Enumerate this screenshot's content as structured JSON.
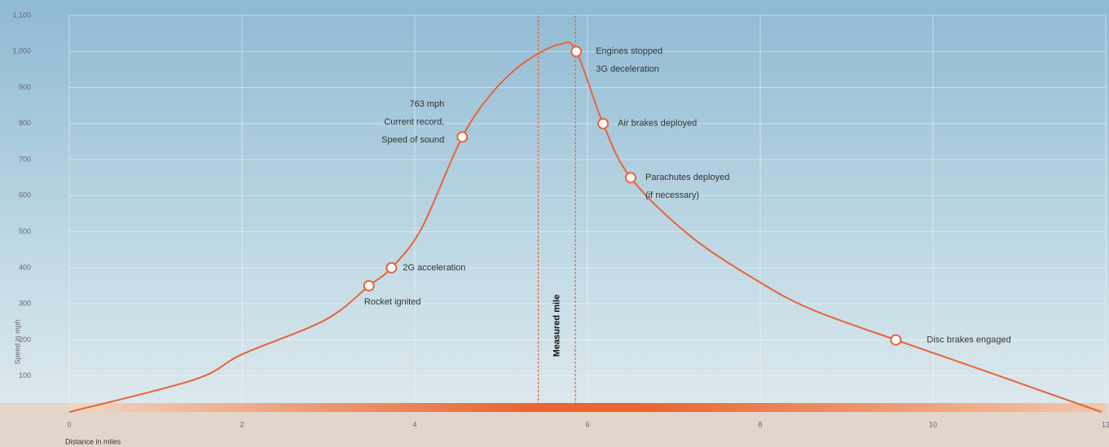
{
  "chart_data": {
    "type": "line",
    "x_label": "Distance in miles",
    "y_label": "Speed in mph",
    "x": [
      0,
      1.45,
      2,
      2.96,
      3.47,
      3.73,
      4.08,
      4.55,
      4.93,
      5.3,
      5.68,
      5.87,
      6.18,
      6.5,
      7.18,
      7.96,
      8.59,
      9.57,
      10.47,
      11.95
    ],
    "series": [
      {
        "color": "#e8643a",
        "values": [
          0,
          90,
          160,
          255,
          350,
          400,
          510,
          763,
          895,
          975,
          1020,
          1000,
          800,
          650,
          490,
          365,
          285,
          200,
          125,
          0
        ]
      }
    ],
    "xlim": [
      0,
      12
    ],
    "xticks": [
      0,
      2,
      4,
      6,
      8,
      10,
      12
    ],
    "ylim": [
      0,
      1100
    ],
    "yticks": [
      100,
      200,
      300,
      400,
      500,
      600,
      700,
      800,
      900,
      {
        "value": 1000,
        "label": "1,000"
      },
      {
        "value": 1100,
        "label": "1,100"
      }
    ],
    "grid": true,
    "measured_mile": {
      "label": "Measured mile",
      "start": 5.43,
      "end": 5.86
    },
    "annotations": [
      {
        "x": 3.47,
        "y": 350,
        "lines": [
          "Rocket ignited"
        ]
      },
      {
        "x": 3.73,
        "y": 400,
        "lines": [
          "2G acceleration"
        ]
      },
      {
        "x": 4.55,
        "y": 763,
        "lines": [
          "763 mph",
          "Current record,",
          "Speed of sound"
        ]
      },
      {
        "x": 5.87,
        "y": 1000,
        "lines": [
          "Engines stopped",
          "3G deceleration"
        ]
      },
      {
        "x": 6.18,
        "y": 800,
        "lines": [
          "Air brakes deployed"
        ]
      },
      {
        "x": 6.5,
        "y": 650,
        "lines": [
          "Parachutes deployed",
          "(if necessary)"
        ]
      },
      {
        "x": 9.57,
        "y": 200,
        "lines": [
          "Disc brakes engaged"
        ]
      }
    ]
  }
}
